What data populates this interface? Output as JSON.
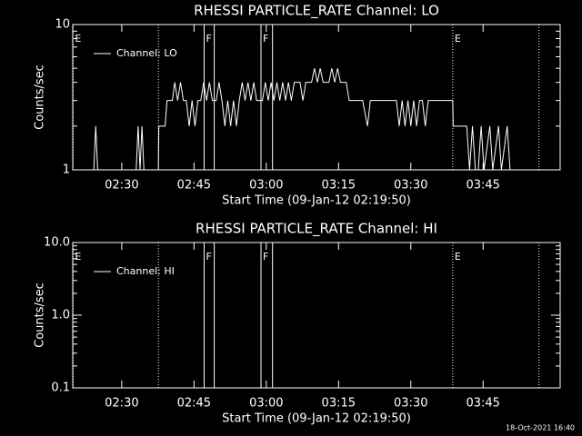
{
  "chart_data": [
    {
      "type": "line",
      "title": "RHESSI PARTICLE_RATE Channel: LO",
      "xlabel": "Start Time (09-Jan-12 02:19:50)",
      "ylabel": "Counts/sec",
      "xlim": [
        19.83,
        121
      ],
      "ylim": [
        1,
        10
      ],
      "yscale": "log",
      "color": "#ffffff",
      "xticks": [
        {
          "value": 30,
          "label": "02:30"
        },
        {
          "value": 45,
          "label": "02:45"
        },
        {
          "value": 60,
          "label": "03:00"
        },
        {
          "value": 75,
          "label": "03:15"
        },
        {
          "value": 90,
          "label": "03:30"
        },
        {
          "value": 105,
          "label": "03:45"
        }
      ],
      "yticks": [
        1,
        10
      ],
      "markers": [
        {
          "x": 19.9,
          "style": "dotted",
          "label": "E"
        },
        {
          "x": 37.6,
          "style": "dotted"
        },
        {
          "x": 47.1,
          "style": "solid",
          "label": "F"
        },
        {
          "x": 49.2,
          "style": "solid"
        },
        {
          "x": 58.9,
          "style": "solid",
          "label": "F"
        },
        {
          "x": 61.3,
          "style": "solid"
        },
        {
          "x": 98.7,
          "style": "dotted",
          "label": "E"
        },
        {
          "x": 116.6,
          "style": "dotted"
        }
      ],
      "series": [
        {
          "name": "Channel: LO",
          "color": "#ffffff",
          "x": [
            22,
            24.2,
            24.6,
            25.0,
            33.0,
            33.4,
            33.8,
            34.2,
            34.6,
            37.6,
            37.7,
            39.0,
            39.4,
            40.5,
            41.0,
            41.6,
            42.2,
            42.8,
            43.4,
            44.0,
            44.6,
            45.2,
            45.8,
            46.4,
            47.0,
            47.6,
            48.2,
            48.8,
            49.6,
            50.2,
            50.8,
            51.4,
            52.0,
            52.6,
            53.2,
            53.8,
            54.4,
            55.0,
            55.6,
            56.2,
            56.8,
            57.4,
            58.0,
            58.6,
            59.2,
            59.8,
            60.4,
            61.0,
            61.6,
            62.2,
            62.8,
            63.4,
            64.0,
            64.6,
            65.2,
            65.8,
            66.4,
            67.0,
            67.6,
            68.2,
            68.8,
            69.4,
            70.0,
            70.6,
            71.2,
            71.8,
            72.4,
            73.0,
            73.6,
            74.2,
            74.8,
            75.4,
            76.0,
            76.6,
            77.2,
            78.0,
            80.0,
            81.0,
            81.6,
            84.0,
            87.0,
            87.6,
            88.2,
            88.8,
            89.4,
            90.0,
            90.6,
            91.2,
            91.8,
            92.4,
            93.0,
            93.6,
            98.7,
            98.8,
            101.6,
            102.2,
            102.8,
            103.4,
            104.0,
            104.6,
            105.2,
            106.4,
            107.0,
            108.2,
            108.8,
            110.0,
            110.6,
            116.6
          ],
          "values": [
            1,
            1,
            2,
            1,
            1,
            2,
            1,
            2,
            1,
            1,
            2,
            2,
            3,
            3,
            4,
            3,
            4,
            3,
            3,
            2,
            3,
            2,
            3,
            3,
            4,
            3,
            4,
            3,
            3,
            4,
            3,
            2,
            3,
            2,
            3,
            2,
            3,
            4,
            3,
            4,
            3,
            4,
            3,
            3,
            3,
            4,
            3,
            4,
            3,
            4,
            3,
            4,
            3,
            4,
            3,
            4,
            4,
            4,
            3,
            4,
            4,
            4,
            5,
            4,
            5,
            4,
            4,
            4,
            5,
            4,
            5,
            4,
            4,
            4,
            3,
            3,
            3,
            2,
            3,
            3,
            3,
            2,
            3,
            2,
            3,
            2,
            3,
            2,
            3,
            3,
            2,
            3,
            3,
            2,
            2,
            1,
            2,
            1,
            1,
            2,
            1,
            2,
            1,
            2,
            1,
            2,
            1,
            1
          ]
        }
      ]
    },
    {
      "type": "line",
      "title": "RHESSI PARTICLE_RATE Channel: HI",
      "xlabel": "Start Time (09-Jan-12 02:19:50)",
      "ylabel": "Counts/sec",
      "xlim": [
        19.83,
        121
      ],
      "ylim": [
        0.1,
        10
      ],
      "yscale": "log",
      "color": "#ffffff",
      "xticks": [
        {
          "value": 30,
          "label": "02:30"
        },
        {
          "value": 45,
          "label": "02:45"
        },
        {
          "value": 60,
          "label": "03:00"
        },
        {
          "value": 75,
          "label": "03:15"
        },
        {
          "value": 90,
          "label": "03:30"
        },
        {
          "value": 105,
          "label": "03:45"
        }
      ],
      "yticks": [
        0.1,
        {
          "value": 1,
          "label": "1.0"
        },
        {
          "value": 10,
          "label": "10.0"
        }
      ],
      "markers": [
        {
          "x": 19.9,
          "style": "dotted",
          "label": "E"
        },
        {
          "x": 37.6,
          "style": "dotted"
        },
        {
          "x": 47.1,
          "style": "solid",
          "label": "F"
        },
        {
          "x": 49.2,
          "style": "solid"
        },
        {
          "x": 58.9,
          "style": "solid",
          "label": "F"
        },
        {
          "x": 61.3,
          "style": "solid"
        },
        {
          "x": 98.7,
          "style": "dotted",
          "label": "E"
        },
        {
          "x": 116.6,
          "style": "dotted"
        }
      ],
      "series": [
        {
          "name": "Channel: HI",
          "color": "#ffffff",
          "x": [],
          "values": []
        }
      ]
    }
  ],
  "footer": "18-Oct-2021 16:40"
}
